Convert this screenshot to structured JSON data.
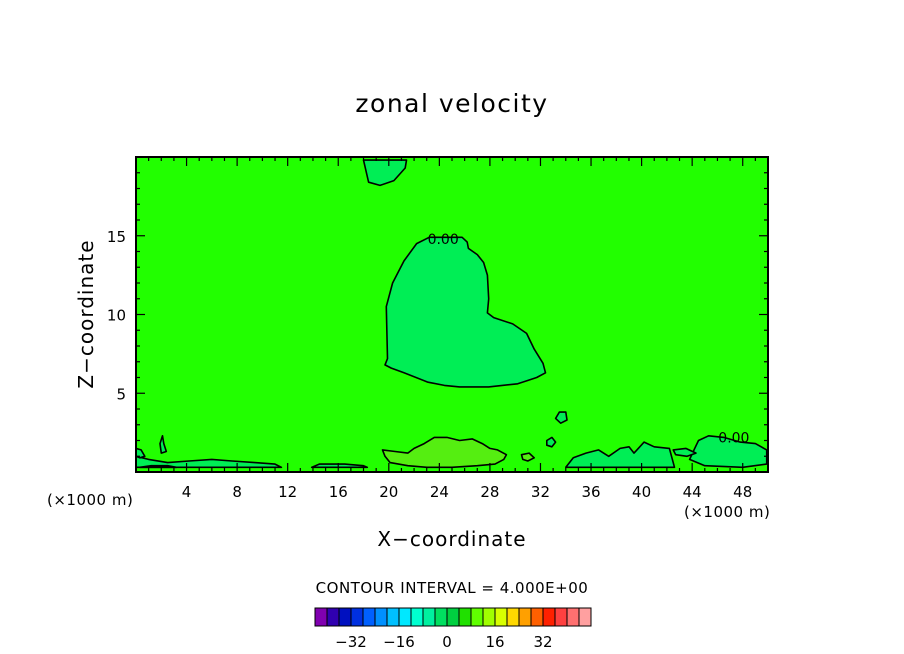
{
  "chart_data": {
    "type": "heatmap",
    "title": "zonal velocity",
    "xlabel": "X−coordinate",
    "ylabel": "Z−coordinate",
    "x_unit_left": "(×1000 m)",
    "x_unit_right": "(×1000 m)",
    "xlim": [
      0,
      50
    ],
    "ylim": [
      0,
      20
    ],
    "x_ticks": [
      4,
      8,
      12,
      16,
      20,
      24,
      28,
      32,
      36,
      40,
      44,
      48
    ],
    "y_ticks": [
      5,
      10,
      15
    ],
    "contour_interval_text": "CONTOUR INTERVAL = 4.000E+00",
    "contour_labels": [
      {
        "text": "0.00",
        "x": 24.3,
        "y": 14.8
      },
      {
        "text": "0.00",
        "x": 47.3,
        "y": 2.2
      }
    ],
    "background_color": "#22ff00",
    "regions": [
      {
        "value": "0 to 4",
        "color": "#00ee55",
        "points": [
          [
            19.7,
            6.8
          ],
          [
            19.9,
            7.2
          ],
          [
            19.8,
            10.5
          ],
          [
            20.3,
            12.0
          ],
          [
            21.2,
            13.4
          ],
          [
            22.2,
            14.5
          ],
          [
            23.2,
            14.9
          ],
          [
            25.8,
            14.9
          ],
          [
            26.2,
            14.6
          ],
          [
            26.3,
            14.2
          ],
          [
            27.0,
            13.8
          ],
          [
            27.5,
            13.3
          ],
          [
            27.8,
            12.5
          ],
          [
            27.9,
            11.0
          ],
          [
            27.8,
            10.1
          ],
          [
            28.3,
            9.8
          ],
          [
            29.8,
            9.4
          ],
          [
            30.9,
            8.8
          ],
          [
            31.5,
            7.8
          ],
          [
            32.2,
            6.9
          ],
          [
            32.4,
            6.3
          ],
          [
            31.7,
            6.0
          ],
          [
            30.2,
            5.6
          ],
          [
            27.9,
            5.4
          ],
          [
            25.6,
            5.4
          ],
          [
            24.4,
            5.5
          ],
          [
            23.1,
            5.7
          ],
          [
            21.2,
            6.3
          ],
          [
            20.2,
            6.6
          ]
        ]
      },
      {
        "value": "0 to 4",
        "color": "#00ee55",
        "points": [
          [
            18.0,
            19.8
          ],
          [
            18.4,
            18.4
          ],
          [
            19.3,
            18.2
          ],
          [
            20.4,
            18.5
          ],
          [
            21.3,
            19.3
          ],
          [
            21.4,
            19.8
          ]
        ]
      },
      {
        "value": "0 to 4",
        "color": "#00ee55",
        "points": [
          [
            33.2,
            3.4
          ],
          [
            33.5,
            3.8
          ],
          [
            34.0,
            3.8
          ],
          [
            34.1,
            3.3
          ],
          [
            33.6,
            3.1
          ]
        ]
      },
      {
        "value": "0 to 4",
        "color": "#00ee55",
        "points": [
          [
            32.5,
            2.0
          ],
          [
            32.9,
            2.2
          ],
          [
            33.2,
            1.9
          ],
          [
            32.9,
            1.6
          ],
          [
            32.5,
            1.7
          ]
        ]
      },
      {
        "value": "0 to 4",
        "color": "#00ee55",
        "points": [
          [
            44.5,
            2.0
          ],
          [
            45.3,
            2.3
          ],
          [
            46.5,
            2.2
          ],
          [
            47.8,
            1.9
          ],
          [
            49.0,
            1.8
          ],
          [
            49.9,
            1.4
          ],
          [
            49.9,
            0.5
          ],
          [
            48.0,
            0.3
          ],
          [
            45.0,
            0.4
          ],
          [
            43.8,
            0.8
          ],
          [
            44.2,
            1.5
          ]
        ]
      },
      {
        "value": "0 to 4",
        "color": "#00ee55",
        "points": [
          [
            34.0,
            0.3
          ],
          [
            34.6,
            0.9
          ],
          [
            35.6,
            1.2
          ],
          [
            36.6,
            1.4
          ],
          [
            37.4,
            1.0
          ],
          [
            38.3,
            1.5
          ],
          [
            39.0,
            1.6
          ],
          [
            39.4,
            1.2
          ],
          [
            40.2,
            1.9
          ],
          [
            41.0,
            1.6
          ],
          [
            42.2,
            1.5
          ],
          [
            42.6,
            0.3
          ]
        ]
      },
      {
        "value": "0 to 4",
        "color": "#00ee55",
        "points": [
          [
            0.0,
            1.0
          ],
          [
            1.0,
            0.8
          ],
          [
            2.5,
            0.6
          ],
          [
            4.2,
            0.7
          ],
          [
            6.0,
            0.8
          ],
          [
            7.6,
            0.7
          ],
          [
            9.4,
            0.6
          ],
          [
            11.0,
            0.5
          ],
          [
            11.5,
            0.3
          ],
          [
            0.0,
            0.3
          ]
        ]
      },
      {
        "value": "0 to 4",
        "color": "#00ee55",
        "points": [
          [
            1.9,
            1.8
          ],
          [
            2.1,
            2.3
          ],
          [
            2.2,
            1.8
          ],
          [
            2.4,
            1.3
          ],
          [
            2.0,
            1.2
          ]
        ]
      },
      {
        "value": "0 to 4",
        "color": "#00ee55",
        "points": [
          [
            0.0,
            1.5
          ],
          [
            0.4,
            1.4
          ],
          [
            0.7,
            1.0
          ],
          [
            0.3,
            0.9
          ],
          [
            0.0,
            1.0
          ]
        ]
      },
      {
        "value": "0 to 4",
        "color": "#00ee55",
        "points": [
          [
            13.9,
            0.3
          ],
          [
            14.5,
            0.5
          ],
          [
            16.5,
            0.5
          ],
          [
            18.0,
            0.4
          ],
          [
            18.3,
            0.3
          ]
        ]
      },
      {
        "value": "0 to 4",
        "color": "#00ee55",
        "points": [
          [
            42.5,
            1.4
          ],
          [
            43.5,
            1.5
          ],
          [
            44.3,
            1.2
          ],
          [
            43.6,
            1.0
          ],
          [
            42.7,
            1.1
          ]
        ]
      },
      {
        "value": "-4 to 0",
        "color": "#55ee11",
        "points": [
          [
            19.5,
            1.4
          ],
          [
            20.5,
            1.3
          ],
          [
            21.5,
            1.2
          ],
          [
            22.0,
            1.5
          ],
          [
            22.8,
            1.8
          ],
          [
            23.6,
            2.2
          ],
          [
            24.6,
            2.2
          ],
          [
            25.6,
            2.0
          ],
          [
            26.6,
            2.1
          ],
          [
            27.4,
            1.8
          ],
          [
            28.0,
            1.5
          ],
          [
            28.6,
            1.4
          ],
          [
            29.3,
            1.1
          ],
          [
            29.1,
            0.8
          ],
          [
            28.4,
            0.5
          ],
          [
            27.0,
            0.4
          ],
          [
            25.0,
            0.3
          ],
          [
            23.0,
            0.3
          ],
          [
            21.5,
            0.4
          ],
          [
            20.1,
            0.6
          ],
          [
            19.7,
            1.0
          ]
        ]
      },
      {
        "value": "-4 to 0",
        "color": "#55ee11",
        "points": [
          [
            30.5,
            1.1
          ],
          [
            31.1,
            1.2
          ],
          [
            31.5,
            0.9
          ],
          [
            31.0,
            0.7
          ],
          [
            30.6,
            0.8
          ]
        ]
      },
      {
        "value": "-4 to 0",
        "color": "#55ee11",
        "points": [
          [
            0.3,
            0.3
          ],
          [
            1.2,
            0.4
          ],
          [
            2.5,
            0.4
          ],
          [
            3.2,
            0.3
          ]
        ]
      }
    ],
    "colorbar": {
      "colors": [
        "#8000b0",
        "#3000b0",
        "#0010c0",
        "#0030e0",
        "#0060ff",
        "#0090ff",
        "#00c0ff",
        "#00e8ff",
        "#00ffd0",
        "#00f0a0",
        "#00e060",
        "#00d040",
        "#20e000",
        "#60ff00",
        "#a0ff00",
        "#d8ff00",
        "#ffd800",
        "#ffa000",
        "#ff6000",
        "#ff2000",
        "#ff4040",
        "#ff7070",
        "#ffa0a0"
      ],
      "tick_labels": [
        "−32",
        "−16",
        "0",
        "16",
        "32"
      ],
      "tick_values": [
        -32,
        -16,
        0,
        16,
        32
      ]
    }
  }
}
